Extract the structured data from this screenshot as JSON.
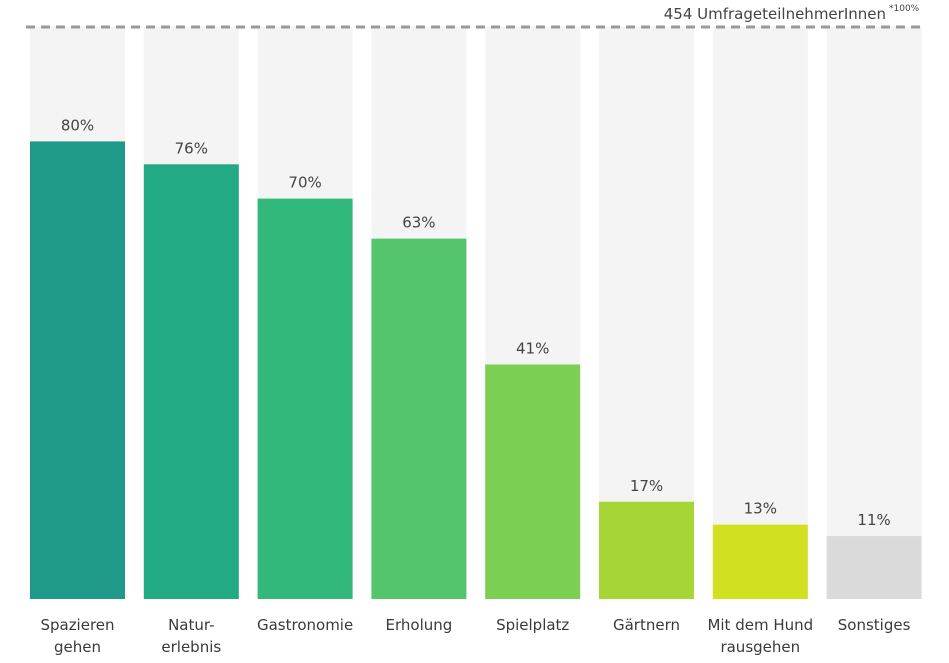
{
  "chart_data": {
    "type": "bar",
    "reference_label": "454 UmfrageteilnehmerInnen",
    "reference_note": "*100%",
    "reference_value": 100,
    "ylim": [
      0,
      100
    ],
    "grid": false,
    "categories": [
      [
        "Spazieren",
        "gehen"
      ],
      [
        "Natur-",
        "erlebnis"
      ],
      [
        "Gastronomie"
      ],
      [
        "Erholung"
      ],
      [
        "Spielplatz"
      ],
      [
        "Gärtnern"
      ],
      [
        "Mit dem Hund",
        "rausgehen"
      ],
      [
        "Sonstiges"
      ]
    ],
    "values": [
      80,
      76,
      70,
      63,
      41,
      17,
      13,
      11
    ],
    "value_labels": [
      "80%",
      "76%",
      "70%",
      "63%",
      "41%",
      "17%",
      "13%",
      "11%"
    ],
    "colors": [
      "#1f9a8a",
      "#22aa85",
      "#32b87a",
      "#54c56c",
      "#7ccf52",
      "#a6d636",
      "#d1e01f",
      "#dadada"
    ],
    "background_color": "#f4f4f4",
    "reference_line_color": "#9a9a9a"
  }
}
